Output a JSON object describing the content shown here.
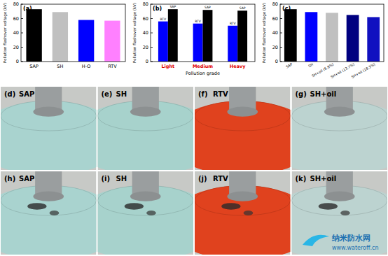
{
  "chart_data": [
    {
      "type": "bar",
      "title": "(a)",
      "y_label": "Pollution flashover voltage (kV)",
      "categories": [
        "SAP",
        "SH",
        "H-O",
        "RTV"
      ],
      "values": [
        73,
        69,
        58,
        57
      ],
      "colors": [
        "#000000",
        "#c0c0c0",
        "#0000ff",
        "#ff80ff"
      ],
      "ylim": [
        0,
        80
      ],
      "yticks": [
        0,
        20,
        40,
        60,
        80
      ],
      "grid": false
    },
    {
      "type": "bar",
      "title": "(b)",
      "y_label": "Pollution flashover voltage (kV)",
      "x_label": "Pollution grade",
      "categories": [
        "Light",
        "Medium",
        "Heavy"
      ],
      "series": [
        {
          "name": "RTV",
          "color": "#0000ff",
          "values": [
            56,
            53,
            50
          ]
        },
        {
          "name": "SAP",
          "color": "#000000",
          "values": [
            73,
            72,
            71
          ]
        }
      ],
      "ylim": [
        0,
        80
      ],
      "yticks": [
        0,
        20,
        40,
        60,
        80
      ],
      "grid": false
    },
    {
      "type": "bar",
      "title": "(c)",
      "y_label": "Pollution flashover voltage (kV)",
      "categories": [
        "SAP",
        "SH",
        "SH+oil (6.8%)",
        "SH+oil (13.7%)",
        "SH+oil (18.3%)"
      ],
      "values": [
        73,
        69,
        68,
        65,
        62
      ],
      "colors": [
        "#000000",
        "#0000ff",
        "#c0c0c0",
        "#000080",
        "#1010c0"
      ],
      "ylim": [
        0,
        80
      ],
      "yticks": [
        0,
        20,
        40,
        60,
        80
      ],
      "grid": false
    }
  ],
  "photos": [
    {
      "panel": "(d)",
      "label": "SAP"
    },
    {
      "panel": "(e)",
      "label": "SH"
    },
    {
      "panel": "(f)",
      "label": "RTV"
    },
    {
      "panel": "(g)",
      "label": "SH+oil"
    },
    {
      "panel": "(h)",
      "label": "SAP"
    },
    {
      "panel": "(i)",
      "label": "SH"
    },
    {
      "panel": "(j)",
      "label": "RTV"
    },
    {
      "panel": "(k)",
      "label": "SH+oil"
    }
  ],
  "watermark": {
    "name": "纳米防水网",
    "url": "www.wateroff.cn"
  }
}
